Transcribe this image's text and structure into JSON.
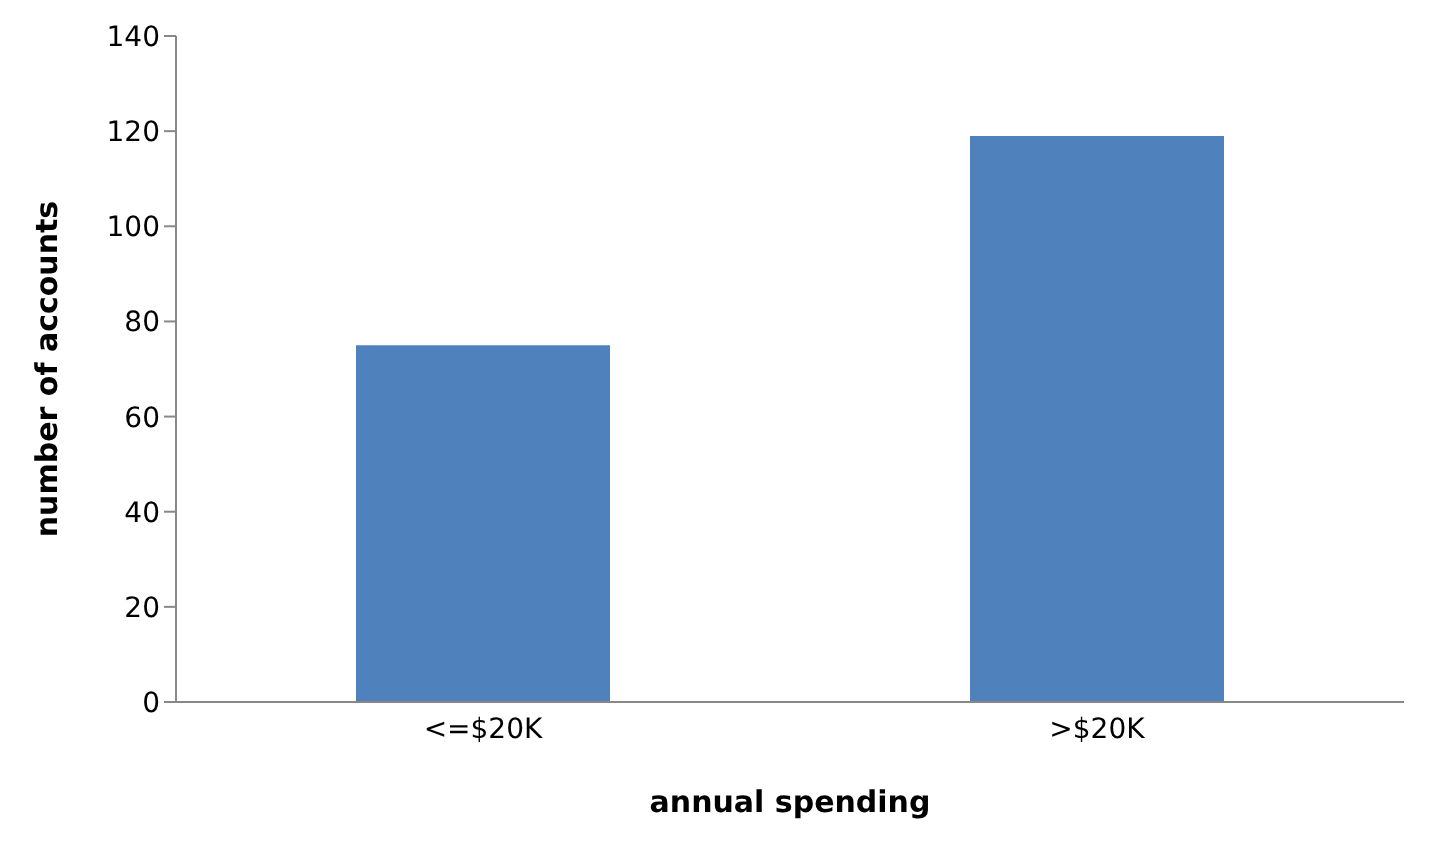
{
  "chart_data": {
    "type": "bar",
    "xlabel": "annual spending",
    "ylabel": "number of accounts",
    "categories": [
      "<=$20K",
      ">$20K"
    ],
    "values": [
      75,
      119
    ],
    "color": "#4f81bd",
    "ylim": [
      0,
      140
    ],
    "yticks": [
      0,
      20,
      40,
      60,
      80,
      100,
      120,
      140
    ]
  }
}
